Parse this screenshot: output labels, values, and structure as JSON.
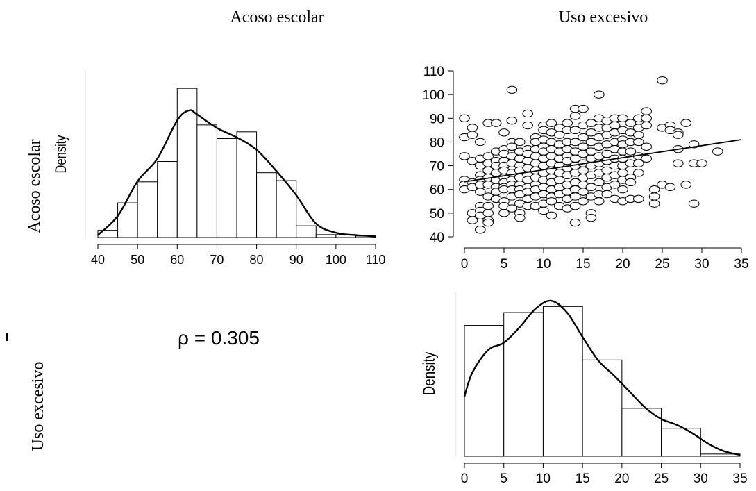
{
  "column_headers": [
    "Acoso escolar",
    "Uso excesivo"
  ],
  "row_headers": [
    "Acoso escolar",
    "Uso excesivo"
  ],
  "correlation_text": "ρ = 0.305",
  "chart_data": [
    {
      "type": "bar",
      "panel": "histogram-acoso-escolar",
      "ylabel": "Density",
      "bins": [
        [
          40,
          45
        ],
        [
          45,
          50
        ],
        [
          50,
          55
        ],
        [
          55,
          60
        ],
        [
          60,
          65
        ],
        [
          65,
          70
        ],
        [
          70,
          75
        ],
        [
          75,
          80
        ],
        [
          80,
          85
        ],
        [
          85,
          90
        ],
        [
          90,
          95
        ],
        [
          95,
          100
        ],
        [
          100,
          105
        ],
        [
          105,
          110
        ]
      ],
      "values": [
        0.003,
        0.0145,
        0.0233,
        0.0318,
        0.0624,
        0.0471,
        0.0414,
        0.0442,
        0.0271,
        0.0238,
        0.0049,
        0.0012,
        0.0012,
        0.0006
      ],
      "density_curve": {
        "x": [
          40,
          45,
          50,
          55,
          60,
          63,
          65,
          70,
          75,
          80,
          85,
          90,
          95,
          100,
          105,
          110
        ],
        "y": [
          0.001,
          0.009,
          0.0235,
          0.033,
          0.049,
          0.0532,
          0.0515,
          0.0458,
          0.0419,
          0.0367,
          0.0278,
          0.0177,
          0.0058,
          0.002,
          0.001,
          0.0005
        ]
      },
      "xticks": [
        40,
        50,
        60,
        70,
        80,
        90,
        100,
        110
      ],
      "xlim": [
        40,
        110
      ],
      "ylim": [
        0,
        0.07
      ]
    },
    {
      "type": "scatter",
      "panel": "scatter-uso-vs-acoso",
      "xticks": [
        0,
        5,
        10,
        15,
        20,
        25,
        30,
        35
      ],
      "yticks": [
        40,
        50,
        60,
        70,
        80,
        90,
        100,
        110
      ],
      "xlim": [
        0,
        35
      ],
      "ylim": [
        40,
        110
      ],
      "regression_line": {
        "x": [
          0,
          35
        ],
        "y": [
          63.2,
          81
        ]
      },
      "points": [
        [
          0,
          90
        ],
        [
          0,
          82
        ],
        [
          0,
          74
        ],
        [
          0,
          64
        ],
        [
          0,
          62
        ],
        [
          0,
          60
        ],
        [
          1,
          86
        ],
        [
          1,
          83
        ],
        [
          1,
          72
        ],
        [
          1,
          63
        ],
        [
          1,
          61
        ],
        [
          1,
          50
        ],
        [
          1,
          47
        ],
        [
          2,
          80
        ],
        [
          2,
          73
        ],
        [
          2,
          70
        ],
        [
          2,
          66
        ],
        [
          2,
          64
        ],
        [
          2,
          62
        ],
        [
          2,
          59
        ],
        [
          2,
          53
        ],
        [
          2,
          51
        ],
        [
          2,
          49
        ],
        [
          2,
          43
        ],
        [
          3,
          88
        ],
        [
          3,
          74
        ],
        [
          3,
          71
        ],
        [
          3,
          68
        ],
        [
          3,
          65
        ],
        [
          3,
          62
        ],
        [
          3,
          57
        ],
        [
          3,
          53
        ],
        [
          3,
          50
        ],
        [
          3,
          47
        ],
        [
          3,
          46
        ],
        [
          4,
          88
        ],
        [
          4,
          76
        ],
        [
          4,
          72
        ],
        [
          4,
          70
        ],
        [
          4,
          67
        ],
        [
          4,
          64
        ],
        [
          4,
          61
        ],
        [
          4,
          59
        ],
        [
          4,
          56
        ],
        [
          5,
          84
        ],
        [
          5,
          77
        ],
        [
          5,
          75
        ],
        [
          5,
          72
        ],
        [
          5,
          70
        ],
        [
          5,
          68
        ],
        [
          5,
          65
        ],
        [
          5,
          63
        ],
        [
          5,
          61
        ],
        [
          5,
          60
        ],
        [
          5,
          55
        ],
        [
          5,
          53
        ],
        [
          5,
          50
        ],
        [
          6,
          102
        ],
        [
          6,
          89
        ],
        [
          6,
          80
        ],
        [
          6,
          78
        ],
        [
          6,
          74
        ],
        [
          6,
          71
        ],
        [
          6,
          67
        ],
        [
          6,
          64
        ],
        [
          6,
          62
        ],
        [
          6,
          60
        ],
        [
          6,
          57
        ],
        [
          6,
          52
        ],
        [
          7,
          80
        ],
        [
          7,
          76
        ],
        [
          7,
          73
        ],
        [
          7,
          70
        ],
        [
          7,
          68
        ],
        [
          7,
          65
        ],
        [
          7,
          62
        ],
        [
          7,
          60
        ],
        [
          7,
          58
        ],
        [
          7,
          54
        ],
        [
          7,
          50
        ],
        [
          7,
          48
        ],
        [
          8,
          92
        ],
        [
          8,
          87
        ],
        [
          8,
          77
        ],
        [
          8,
          75
        ],
        [
          8,
          72
        ],
        [
          8,
          69
        ],
        [
          8,
          66
        ],
        [
          8,
          64
        ],
        [
          8,
          61
        ],
        [
          8,
          59
        ],
        [
          8,
          56
        ],
        [
          8,
          53
        ],
        [
          9,
          82
        ],
        [
          9,
          80
        ],
        [
          9,
          77
        ],
        [
          9,
          74
        ],
        [
          9,
          71
        ],
        [
          9,
          68
        ],
        [
          9,
          65
        ],
        [
          9,
          62
        ],
        [
          9,
          60
        ],
        [
          9,
          57
        ],
        [
          9,
          53
        ],
        [
          10,
          87
        ],
        [
          10,
          85
        ],
        [
          10,
          81
        ],
        [
          10,
          78
        ],
        [
          10,
          76
        ],
        [
          10,
          73
        ],
        [
          10,
          70
        ],
        [
          10,
          67
        ],
        [
          10,
          64
        ],
        [
          10,
          61
        ],
        [
          10,
          58
        ],
        [
          10,
          54
        ],
        [
          10,
          51
        ],
        [
          11,
          88
        ],
        [
          11,
          84
        ],
        [
          11,
          80
        ],
        [
          11,
          77
        ],
        [
          11,
          74
        ],
        [
          11,
          71
        ],
        [
          11,
          68
        ],
        [
          11,
          65
        ],
        [
          11,
          63
        ],
        [
          11,
          60
        ],
        [
          11,
          57
        ],
        [
          11,
          55
        ],
        [
          11,
          49
        ],
        [
          12,
          86
        ],
        [
          12,
          83
        ],
        [
          12,
          79
        ],
        [
          12,
          76
        ],
        [
          12,
          73
        ],
        [
          12,
          70
        ],
        [
          12,
          67
        ],
        [
          12,
          64
        ],
        [
          12,
          61
        ],
        [
          12,
          58
        ],
        [
          12,
          53
        ],
        [
          13,
          88
        ],
        [
          13,
          85
        ],
        [
          13,
          80
        ],
        [
          13,
          77
        ],
        [
          13,
          74
        ],
        [
          13,
          72
        ],
        [
          13,
          69
        ],
        [
          13,
          66
        ],
        [
          13,
          62
        ],
        [
          13,
          59
        ],
        [
          13,
          56
        ],
        [
          13,
          52
        ],
        [
          14,
          94
        ],
        [
          14,
          91
        ],
        [
          14,
          85
        ],
        [
          14,
          80
        ],
        [
          14,
          76
        ],
        [
          14,
          73
        ],
        [
          14,
          70
        ],
        [
          14,
          67
        ],
        [
          14,
          63
        ],
        [
          14,
          60
        ],
        [
          14,
          57
        ],
        [
          14,
          53
        ],
        [
          14,
          46
        ],
        [
          15,
          94
        ],
        [
          15,
          87
        ],
        [
          15,
          82
        ],
        [
          15,
          78
        ],
        [
          15,
          75
        ],
        [
          15,
          71
        ],
        [
          15,
          68
        ],
        [
          15,
          65
        ],
        [
          15,
          62
        ],
        [
          15,
          59
        ],
        [
          15,
          55
        ],
        [
          16,
          88
        ],
        [
          16,
          84
        ],
        [
          16,
          80
        ],
        [
          16,
          76
        ],
        [
          16,
          73
        ],
        [
          16,
          70
        ],
        [
          16,
          66
        ],
        [
          16,
          61
        ],
        [
          16,
          57
        ],
        [
          16,
          50
        ],
        [
          16,
          48
        ],
        [
          17,
          100
        ],
        [
          17,
          90
        ],
        [
          17,
          86
        ],
        [
          17,
          82
        ],
        [
          17,
          78
        ],
        [
          17,
          74
        ],
        [
          17,
          71
        ],
        [
          17,
          67
        ],
        [
          17,
          63
        ],
        [
          17,
          58
        ],
        [
          17,
          55
        ],
        [
          18,
          89
        ],
        [
          18,
          86
        ],
        [
          18,
          83
        ],
        [
          18,
          79
        ],
        [
          18,
          75
        ],
        [
          18,
          72
        ],
        [
          18,
          68
        ],
        [
          18,
          65
        ],
        [
          18,
          61
        ],
        [
          18,
          58
        ],
        [
          19,
          90
        ],
        [
          19,
          87
        ],
        [
          19,
          84
        ],
        [
          19,
          80
        ],
        [
          19,
          77
        ],
        [
          19,
          73
        ],
        [
          19,
          70
        ],
        [
          19,
          66
        ],
        [
          19,
          62
        ],
        [
          19,
          56
        ],
        [
          20,
          90
        ],
        [
          20,
          85
        ],
        [
          20,
          81
        ],
        [
          20,
          79
        ],
        [
          20,
          76
        ],
        [
          20,
          73
        ],
        [
          20,
          70
        ],
        [
          20,
          67
        ],
        [
          20,
          64
        ],
        [
          20,
          60
        ],
        [
          20,
          55
        ],
        [
          21,
          88
        ],
        [
          21,
          84
        ],
        [
          21,
          80
        ],
        [
          21,
          76
        ],
        [
          21,
          71
        ],
        [
          21,
          65
        ],
        [
          21,
          63
        ],
        [
          21,
          56
        ],
        [
          22,
          90
        ],
        [
          22,
          86
        ],
        [
          22,
          83
        ],
        [
          22,
          80
        ],
        [
          22,
          74
        ],
        [
          22,
          71
        ],
        [
          22,
          67
        ],
        [
          22,
          56
        ],
        [
          23,
          93
        ],
        [
          23,
          90
        ],
        [
          23,
          87
        ],
        [
          23,
          78
        ],
        [
          23,
          73
        ],
        [
          24,
          60
        ],
        [
          24,
          57
        ],
        [
          24,
          54
        ],
        [
          25,
          106
        ],
        [
          25,
          86
        ],
        [
          25,
          62
        ],
        [
          26,
          87
        ],
        [
          26,
          85
        ],
        [
          26,
          61
        ],
        [
          27,
          84
        ],
        [
          27,
          83
        ],
        [
          27,
          77
        ],
        [
          27,
          71
        ],
        [
          28,
          88
        ],
        [
          28,
          62
        ],
        [
          29,
          79
        ],
        [
          29,
          71
        ],
        [
          29,
          54
        ],
        [
          30,
          71
        ],
        [
          32,
          76
        ]
      ]
    },
    {
      "type": "bar",
      "panel": "histogram-uso-excesivo",
      "ylabel": "Density",
      "bins": [
        [
          0,
          5
        ],
        [
          5,
          10
        ],
        [
          10,
          15
        ],
        [
          15,
          20
        ],
        [
          20,
          25
        ],
        [
          25,
          30
        ],
        [
          30,
          35
        ]
      ],
      "values": [
        0.0477,
        0.0524,
        0.0546,
        0.0351,
        0.0175,
        0.0102,
        0.0008
      ],
      "density_curve": {
        "x": [
          0,
          1,
          3,
          5,
          7,
          9,
          11,
          13,
          15,
          17,
          19,
          21,
          23,
          25,
          27,
          29,
          31,
          33,
          35
        ],
        "y": [
          0.0218,
          0.0305,
          0.0387,
          0.0414,
          0.047,
          0.0537,
          0.0567,
          0.0525,
          0.0435,
          0.0349,
          0.0294,
          0.0235,
          0.0176,
          0.0136,
          0.0114,
          0.0083,
          0.0045,
          0.0018,
          0.0005
        ]
      },
      "xticks": [
        0,
        5,
        10,
        15,
        20,
        25,
        30,
        35
      ],
      "xlim": [
        0,
        35
      ],
      "ylim": [
        0,
        0.06
      ]
    }
  ]
}
